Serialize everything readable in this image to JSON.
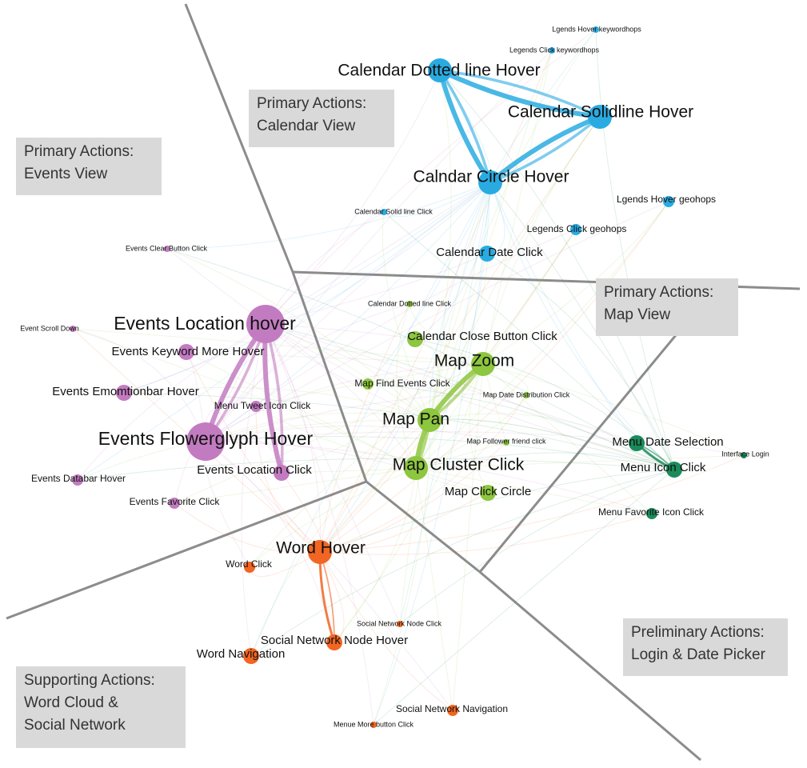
{
  "regions": {
    "events": {
      "line1": "Primary Actions:",
      "line2": "Events View"
    },
    "calendar": {
      "line1": "Primary Actions:",
      "line2": "Calendar View"
    },
    "map": {
      "line1": "Primary Actions:",
      "line2": "Map View"
    },
    "login": {
      "line1": "Preliminary Actions:",
      "line2": "Login & Date Picker"
    },
    "word": {
      "line1": "Supporting Actions:",
      "line2": "Word Cloud &",
      "line3": "Social Network"
    }
  },
  "colors": {
    "calendar": "#29abe2",
    "events": "#c27bc0",
    "map": "#8dc63f",
    "login": "#1b8a5a",
    "word": "#f26522",
    "divider": "#8c8c8c",
    "label_box": "#d9d9d9"
  },
  "nodes": [
    {
      "label": "Lgends Hover keywordhops",
      "cluster": "calendar",
      "size": "xs"
    },
    {
      "label": "Legends Click keywordhops",
      "cluster": "calendar",
      "size": "xs"
    },
    {
      "label": "Calendar Dotted line Hover",
      "cluster": "calendar",
      "size": "l"
    },
    {
      "label": "Calendar Solidline Hover",
      "cluster": "calendar",
      "size": "l"
    },
    {
      "label": "Calndar Circle Hover",
      "cluster": "calendar",
      "size": "l"
    },
    {
      "label": "Lgends Hover geohops",
      "cluster": "calendar",
      "size": "s"
    },
    {
      "label": "Calendar Solid line Click",
      "cluster": "calendar",
      "size": "xs"
    },
    {
      "label": "Legends Click geohops",
      "cluster": "calendar",
      "size": "s"
    },
    {
      "label": "Calendar Date Click",
      "cluster": "calendar",
      "size": "m"
    },
    {
      "label": "Calendar Dotted line Click",
      "cluster": "map",
      "size": "xs"
    },
    {
      "label": "Events Clear Button Click",
      "cluster": "events",
      "size": "xs"
    },
    {
      "label": "Event Scroll Down",
      "cluster": "events",
      "size": "xs"
    },
    {
      "label": "Events Location hover",
      "cluster": "events",
      "size": "xl"
    },
    {
      "label": "Events Keyword More Hover",
      "cluster": "events",
      "size": "m"
    },
    {
      "label": "Events Emomtionbar Hover",
      "cluster": "events",
      "size": "m"
    },
    {
      "label": "Menu Tweet Icon Click",
      "cluster": "events",
      "size": "s"
    },
    {
      "label": "Events Flowerglyph Hover",
      "cluster": "events",
      "size": "xl"
    },
    {
      "label": "Events Location Click",
      "cluster": "events",
      "size": "m"
    },
    {
      "label": "Events Databar Hover",
      "cluster": "events",
      "size": "s"
    },
    {
      "label": "Events Favorite Click",
      "cluster": "events",
      "size": "s"
    },
    {
      "label": "Calendar Close Button Click",
      "cluster": "map",
      "size": "m"
    },
    {
      "label": "Map Zoom",
      "cluster": "map",
      "size": "l"
    },
    {
      "label": "Map Find Events Click",
      "cluster": "map",
      "size": "s"
    },
    {
      "label": "Map Date Distribution Click",
      "cluster": "map",
      "size": "xs"
    },
    {
      "label": "Map Pan",
      "cluster": "map",
      "size": "l"
    },
    {
      "label": "Map Follower friend click",
      "cluster": "map",
      "size": "xs"
    },
    {
      "label": "Map Cluster Click",
      "cluster": "map",
      "size": "l"
    },
    {
      "label": "Map Click Circle",
      "cluster": "map",
      "size": "m"
    },
    {
      "label": "Menu Date Selection",
      "cluster": "login",
      "size": "m"
    },
    {
      "label": "Interface Login",
      "cluster": "login",
      "size": "xs"
    },
    {
      "label": "Menu Icon Click",
      "cluster": "login",
      "size": "m"
    },
    {
      "label": "Menu Favorite Icon Click",
      "cluster": "login",
      "size": "s"
    },
    {
      "label": "Word Hover",
      "cluster": "word",
      "size": "l"
    },
    {
      "label": "Word Click",
      "cluster": "word",
      "size": "s"
    },
    {
      "label": "Social Network Node Click",
      "cluster": "word",
      "size": "xs"
    },
    {
      "label": "Social Network Node Hover",
      "cluster": "word",
      "size": "m"
    },
    {
      "label": "Word Navigation",
      "cluster": "word",
      "size": "m"
    },
    {
      "label": "Social Network Navigation",
      "cluster": "word",
      "size": "s"
    },
    {
      "label": "Menue More button Click",
      "cluster": "word",
      "size": "xs"
    }
  ],
  "edges": [
    {
      "from": "Calendar Dotted line Hover",
      "to": "Calendar Solidline Hover",
      "weight": "heavy"
    },
    {
      "from": "Calendar Dotted line Hover",
      "to": "Calndar Circle Hover",
      "weight": "heavy"
    },
    {
      "from": "Calendar Solidline Hover",
      "to": "Calndar Circle Hover",
      "weight": "heavy"
    },
    {
      "from": "Events Location hover",
      "to": "Events Flowerglyph Hover",
      "weight": "heavy"
    },
    {
      "from": "Events Location hover",
      "to": "Events Location Click",
      "weight": "heavy"
    },
    {
      "from": "Map Zoom",
      "to": "Map Pan",
      "weight": "heavy"
    },
    {
      "from": "Map Pan",
      "to": "Map Cluster Click",
      "weight": "heavy"
    },
    {
      "from": "Word Hover",
      "to": "Social Network Node Hover",
      "weight": "medium"
    },
    {
      "from": "Menu Date Selection",
      "to": "Menu Icon Click",
      "weight": "medium"
    }
  ]
}
